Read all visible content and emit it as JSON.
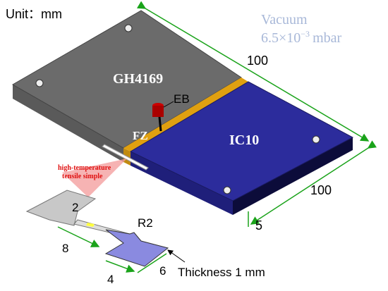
{
  "unit": {
    "label": "Unit：",
    "value": "mm"
  },
  "vacuum": {
    "label": "Vacuum",
    "pressure_base": "6.5×10",
    "pressure_exp": "−3",
    "pressure_unit": "mbar"
  },
  "plate": {
    "length_top": "100",
    "width_right": "100",
    "thickness": "5",
    "left_material": "GH4169",
    "right_material": "IC10",
    "fusion_zone": "FZ",
    "beam": "EB"
  },
  "specimen": {
    "label_line1": "high-temperature",
    "label_line2": "tensile simple",
    "gauge_width": "2",
    "radius": "R2",
    "gauge_length": "8",
    "neck": "4",
    "grip": "6",
    "thickness": "Thickness 1 mm"
  }
}
